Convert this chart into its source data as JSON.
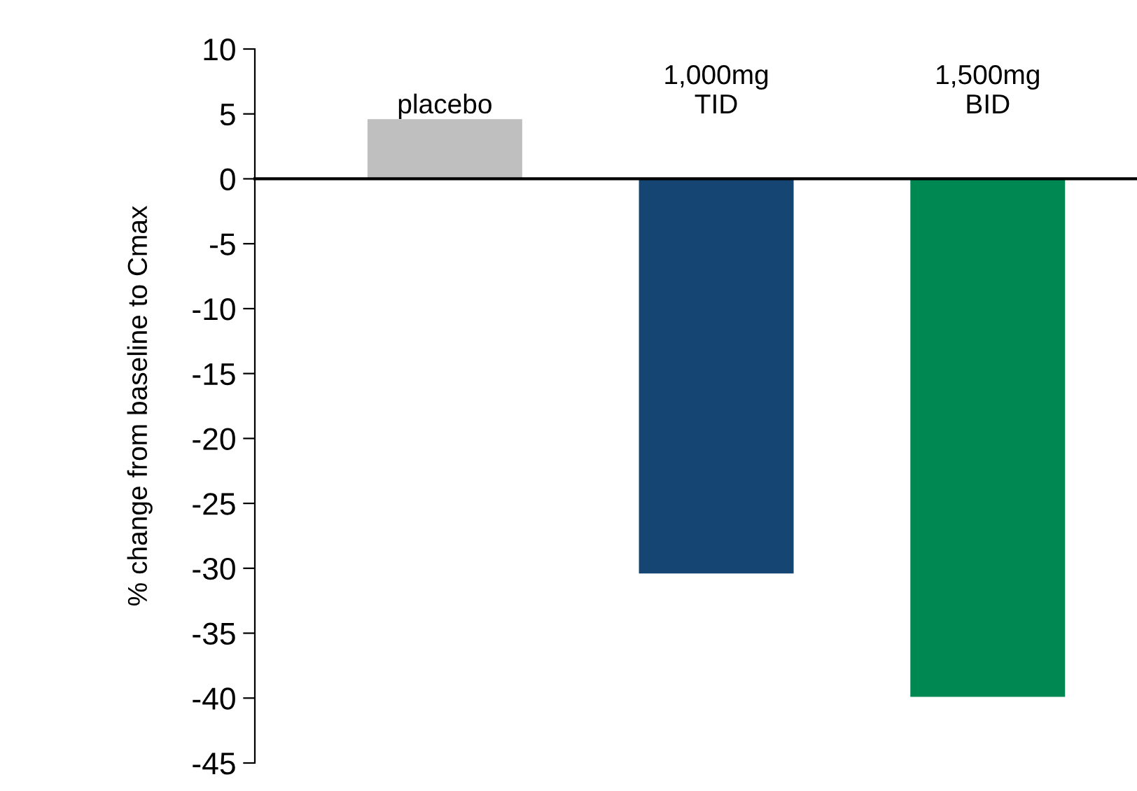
{
  "chart_data": {
    "type": "bar",
    "ylabel": "% change from baseline to Cmax",
    "categories": [
      "placebo",
      "1,000mg\nTID",
      "1,500mg\nBID"
    ],
    "values": [
      4.6,
      -30.4,
      -39.9
    ],
    "colors": [
      "#bfbfbf",
      "#154673",
      "#008853"
    ],
    "ylim": [
      -45,
      10
    ],
    "yticks": [
      -45,
      -40,
      -35,
      -30,
      -25,
      -20,
      -15,
      -10,
      -5,
      0,
      5,
      10
    ]
  }
}
